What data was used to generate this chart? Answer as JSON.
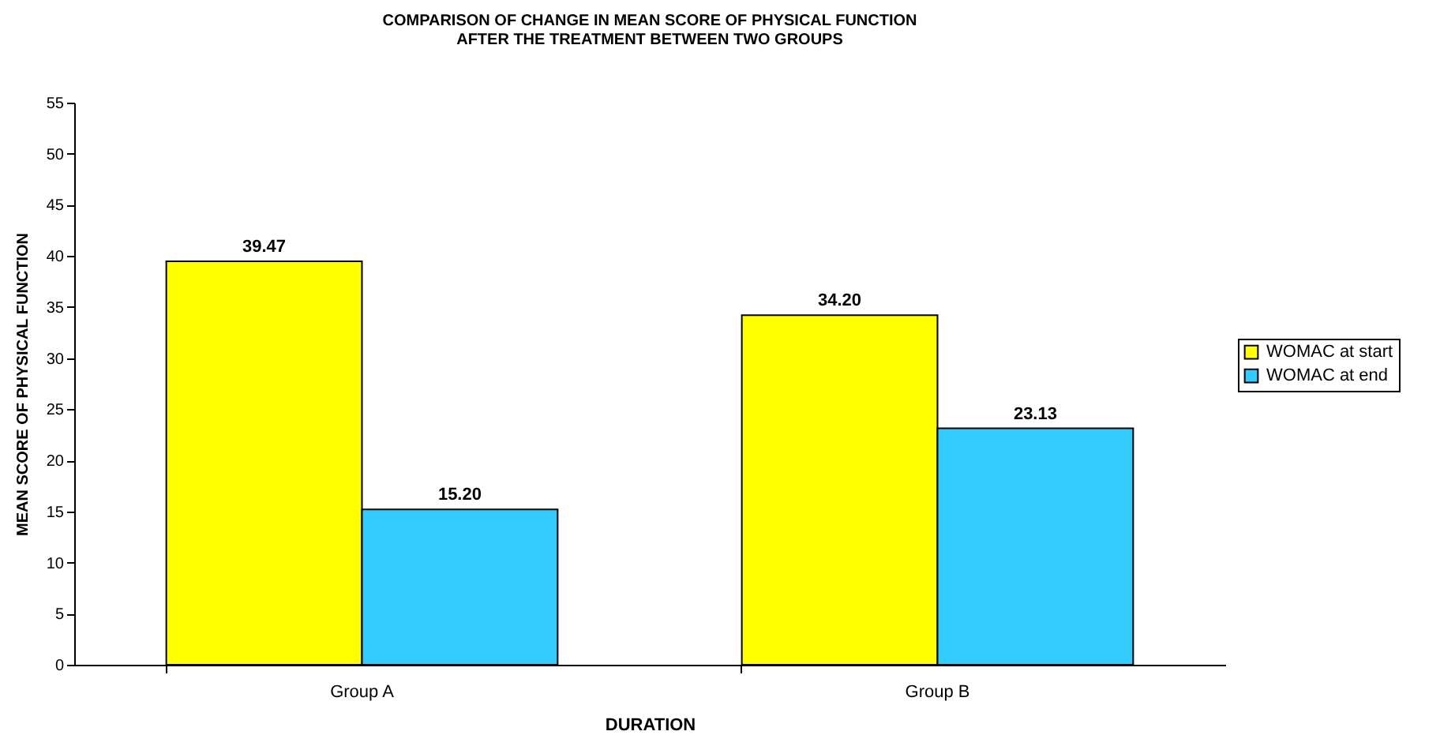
{
  "chart_data": {
    "type": "bar",
    "title": "COMPARISON OF CHANGE IN MEAN SCORE OF PHYSICAL FUNCTION\nAFTER THE TREATMENT BETWEEN TWO GROUPS",
    "xlabel": "DURATION",
    "ylabel": "MEAN SCORE OF PHYSICAL FUNCTION",
    "categories": [
      "Group A",
      "Group B"
    ],
    "series": [
      {
        "name": "WOMAC at start",
        "color": "#ffff00",
        "values": [
          39.47,
          34.2
        ],
        "value_labels": [
          "39.47",
          "34.20"
        ]
      },
      {
        "name": "WOMAC at end",
        "color": "#33ccff",
        "values": [
          15.2,
          23.13
        ],
        "value_labels": [
          "15.20",
          "23.13"
        ]
      }
    ],
    "ylim": [
      0,
      55
    ],
    "yticks": [
      0,
      5,
      10,
      15,
      20,
      25,
      30,
      35,
      40,
      45,
      50,
      55
    ],
    "grid": false,
    "legend": "right"
  }
}
